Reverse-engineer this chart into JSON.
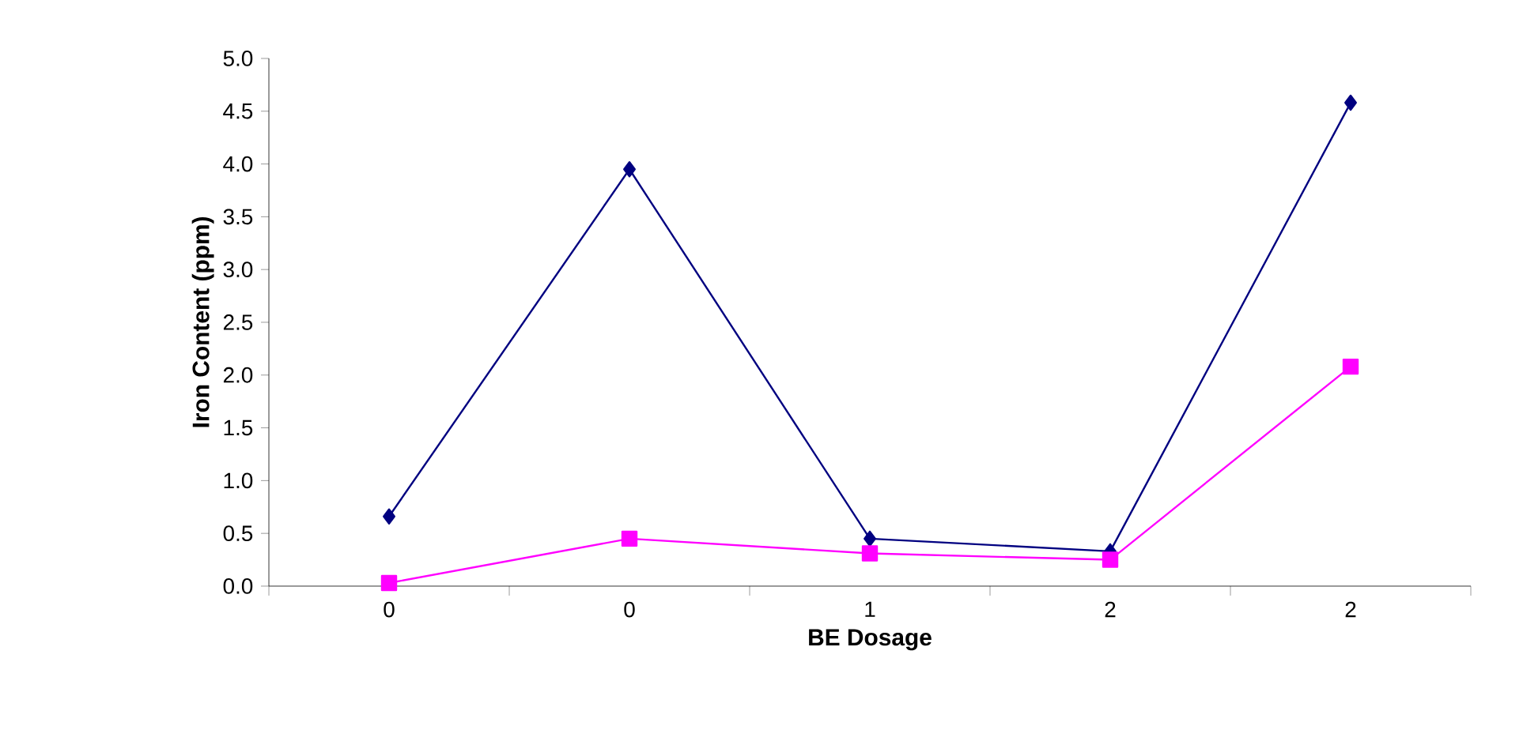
{
  "chart_data": {
    "type": "line",
    "xlabel": "BE Dosage",
    "ylabel": "Iron Content (ppm)",
    "categories": [
      "0",
      "0",
      "1",
      "2",
      "2"
    ],
    "series": [
      {
        "color": "#000080",
        "marker": "diamond",
        "values": [
          0.66,
          3.95,
          0.45,
          0.33,
          4.58
        ]
      },
      {
        "color": "#ff00ff",
        "marker": "square",
        "values": [
          0.03,
          0.45,
          0.31,
          0.25,
          2.08
        ]
      }
    ],
    "ylim": [
      0,
      5
    ],
    "yticks": [
      {
        "value": 0,
        "label": "0.0"
      },
      {
        "value": 0.5,
        "label": "0.5"
      },
      {
        "value": 1,
        "label": "1.0"
      },
      {
        "value": 1.5,
        "label": "1.5"
      },
      {
        "value": 2,
        "label": "2.0"
      },
      {
        "value": 2.5,
        "label": "2.5"
      },
      {
        "value": 3,
        "label": "3.0"
      },
      {
        "value": 3.5,
        "label": "3.5"
      },
      {
        "value": 4,
        "label": "4.0"
      },
      {
        "value": 4.5,
        "label": "4.5"
      },
      {
        "value": 5,
        "label": "5.0"
      }
    ],
    "grid": false
  }
}
